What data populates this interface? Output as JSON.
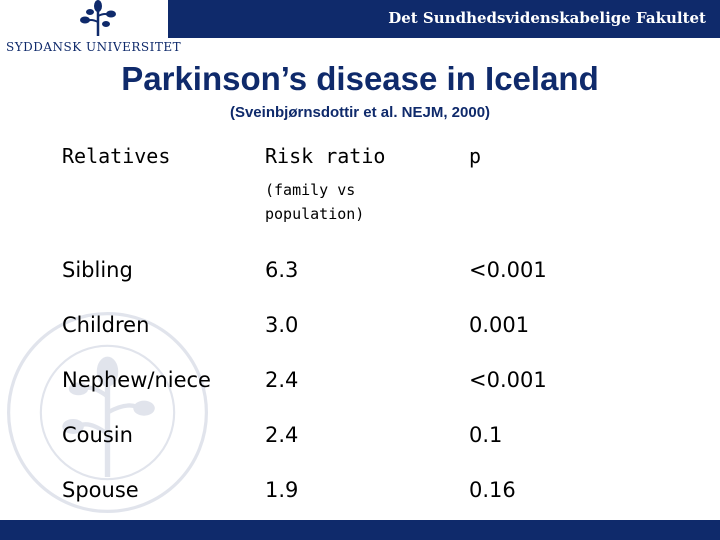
{
  "header": {
    "faculty": "Det Sundhedsvidenskabelige Fakultet",
    "university": "SYDDANSK UNIVERSITET"
  },
  "slide": {
    "title": "Parkinson’s disease in Iceland",
    "subtitle": "(Sveinbjørnsdottir et al. NEJM, 2000)"
  },
  "table": {
    "headers": [
      "Relatives",
      "Risk ratio",
      "p"
    ],
    "header_note": "(family vs population)",
    "rows": [
      {
        "relative": "Sibling",
        "risk_ratio": "6.3",
        "p": "<0.001"
      },
      {
        "relative": "Children",
        "risk_ratio": "3.0",
        "p": "0.001"
      },
      {
        "relative": "Nephew/niece",
        "risk_ratio": "2.4",
        "p": "<0.001"
      },
      {
        "relative": "Cousin",
        "risk_ratio": "2.4",
        "p": "0.1"
      },
      {
        "relative": "Spouse",
        "risk_ratio": "1.9",
        "p": "0.16"
      }
    ]
  },
  "colors": {
    "brand": "#0f2a6b"
  },
  "icons": {
    "logo": "tree-icon",
    "watermark": "university-seal-icon"
  }
}
